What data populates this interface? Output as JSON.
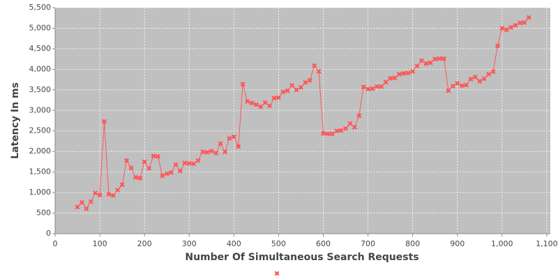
{
  "chart_data": {
    "type": "line",
    "x_label": "Number Of Simultaneous Search Requests",
    "y_label": "Latency In ms",
    "x": [
      50,
      60,
      70,
      80,
      90,
      100,
      110,
      120,
      130,
      140,
      150,
      160,
      170,
      180,
      190,
      200,
      210,
      220,
      230,
      240,
      250,
      260,
      270,
      280,
      290,
      300,
      310,
      320,
      330,
      340,
      350,
      360,
      370,
      380,
      390,
      400,
      410,
      420,
      430,
      440,
      450,
      460,
      470,
      480,
      490,
      500,
      510,
      520,
      530,
      540,
      550,
      560,
      570,
      580,
      590,
      600,
      610,
      620,
      630,
      640,
      650,
      660,
      670,
      680,
      690,
      700,
      710,
      720,
      730,
      740,
      750,
      760,
      770,
      780,
      790,
      800,
      810,
      820,
      830,
      840,
      850,
      860,
      870,
      880,
      890,
      900,
      910,
      920,
      930,
      940,
      950,
      960,
      970,
      980,
      990,
      1000,
      1010,
      1020,
      1030,
      1040,
      1050,
      1060
    ],
    "series": [
      {
        "color": "#ff5555",
        "values": [
          650,
          760,
          610,
          780,
          990,
          940,
          2730,
          960,
          930,
          1060,
          1190,
          1780,
          1600,
          1370,
          1350,
          1750,
          1590,
          1890,
          1880,
          1410,
          1460,
          1490,
          1680,
          1530,
          1720,
          1710,
          1700,
          1780,
          1990,
          1980,
          2010,
          1960,
          2190,
          1990,
          2320,
          2360,
          2120,
          3640,
          3220,
          3180,
          3140,
          3090,
          3190,
          3110,
          3300,
          3310,
          3450,
          3480,
          3610,
          3500,
          3560,
          3680,
          3730,
          4090,
          3950,
          2440,
          2430,
          2430,
          2500,
          2510,
          2560,
          2680,
          2590,
          2870,
          3570,
          3520,
          3530,
          3580,
          3580,
          3690,
          3780,
          3790,
          3880,
          3900,
          3910,
          3950,
          4080,
          4210,
          4140,
          4160,
          4250,
          4260,
          4260,
          3480,
          3590,
          3660,
          3600,
          3620,
          3760,
          3810,
          3710,
          3770,
          3880,
          3940,
          4570,
          5000,
          4960,
          5020,
          5070,
          5130,
          5140,
          5260
        ]
      }
    ],
    "xlim": [
      0,
      1108
    ],
    "ylim": [
      0,
      5500
    ],
    "xticks": [
      0,
      100,
      200,
      300,
      400,
      500,
      600,
      700,
      800,
      900,
      {
        "value": 1000,
        "label": "1,000"
      },
      {
        "value": 1100,
        "label": "1,100"
      }
    ],
    "yticks": [
      0,
      500,
      {
        "value": 1000,
        "label": "1,000"
      },
      {
        "value": 1500,
        "label": "1,500"
      },
      {
        "value": 2000,
        "label": "2,000"
      },
      {
        "value": 2500,
        "label": "2,500"
      },
      {
        "value": 3000,
        "label": "3,000"
      },
      {
        "value": 3500,
        "label": "3,500"
      },
      {
        "value": 4000,
        "label": "4,000"
      },
      {
        "value": 4500,
        "label": "4,500"
      },
      {
        "value": 5000,
        "label": "5,000"
      },
      {
        "value": 5500,
        "label": "5,500"
      }
    ],
    "grid": true,
    "legend": "bottom"
  }
}
